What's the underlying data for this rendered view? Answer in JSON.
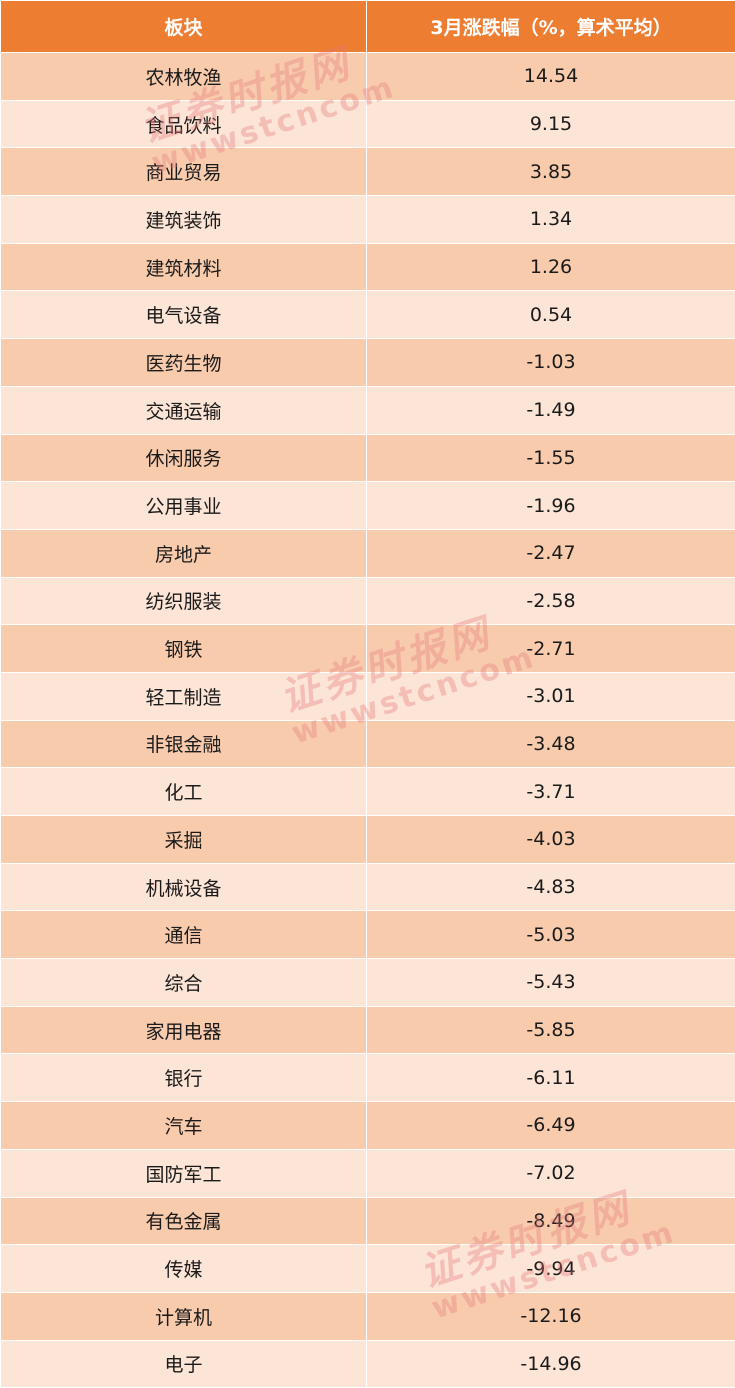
{
  "header": {
    "col_sector": "板块",
    "col_change": "3月涨跌幅（%，算术平均）"
  },
  "rows": [
    {
      "sector": "农林牧渔",
      "change": "14.54"
    },
    {
      "sector": "食品饮料",
      "change": "9.15"
    },
    {
      "sector": "商业贸易",
      "change": "3.85"
    },
    {
      "sector": "建筑装饰",
      "change": "1.34"
    },
    {
      "sector": "建筑材料",
      "change": "1.26"
    },
    {
      "sector": "电气设备",
      "change": "0.54"
    },
    {
      "sector": "医药生物",
      "change": "-1.03"
    },
    {
      "sector": "交通运输",
      "change": "-1.49"
    },
    {
      "sector": "休闲服务",
      "change": "-1.55"
    },
    {
      "sector": "公用事业",
      "change": "-1.96"
    },
    {
      "sector": "房地产",
      "change": "-2.47"
    },
    {
      "sector": "纺织服装",
      "change": "-2.58"
    },
    {
      "sector": "钢铁",
      "change": "-2.71"
    },
    {
      "sector": "轻工制造",
      "change": "-3.01"
    },
    {
      "sector": "非银金融",
      "change": "-3.48"
    },
    {
      "sector": "化工",
      "change": "-3.71"
    },
    {
      "sector": "采掘",
      "change": "-4.03"
    },
    {
      "sector": "机械设备",
      "change": "-4.83"
    },
    {
      "sector": "通信",
      "change": "-5.03"
    },
    {
      "sector": "综合",
      "change": "-5.43"
    },
    {
      "sector": "家用电器",
      "change": "-5.85"
    },
    {
      "sector": "银行",
      "change": "-6.11"
    },
    {
      "sector": "汽车",
      "change": "-6.49"
    },
    {
      "sector": "国防军工",
      "change": "-7.02"
    },
    {
      "sector": "有色金属",
      "change": "-8.49"
    },
    {
      "sector": "传媒",
      "change": "-9.94"
    },
    {
      "sector": "计算机",
      "change": "-12.16"
    },
    {
      "sector": "电子",
      "change": "-14.96"
    }
  ],
  "watermark": {
    "name": "证券时报网",
    "url": "wwwstcncom"
  },
  "colors": {
    "header_bg": "#ed7d31",
    "row_dark": "#f8cbad",
    "row_light": "#fce4d6",
    "watermark": "#e67878"
  }
}
